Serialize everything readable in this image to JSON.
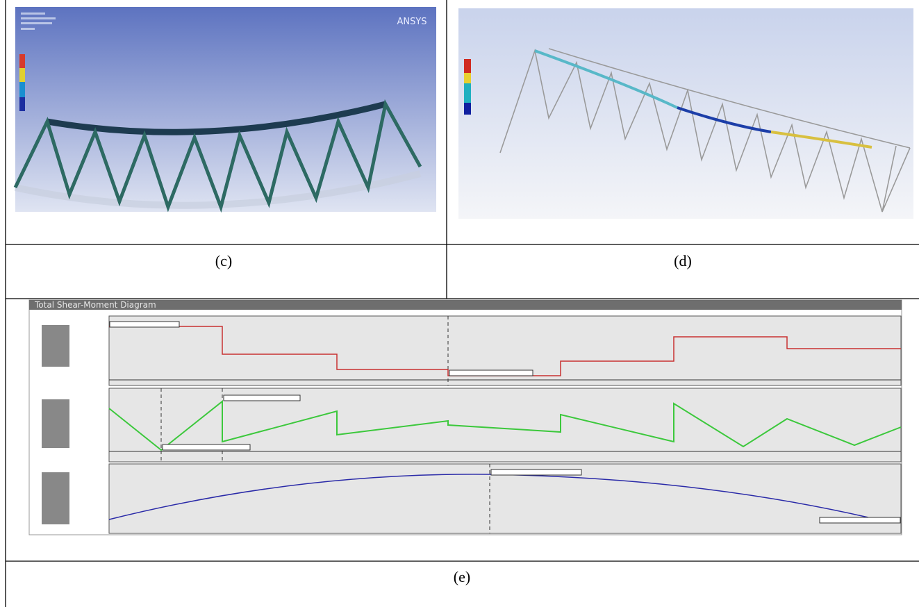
{
  "figure": {
    "panels": [
      {
        "label": "(c)",
        "image_text": "ANSYS"
      },
      {
        "label": "(d)"
      },
      {
        "label": "(e)",
        "title": "Total Shear-Moment Diagram"
      }
    ]
  }
}
